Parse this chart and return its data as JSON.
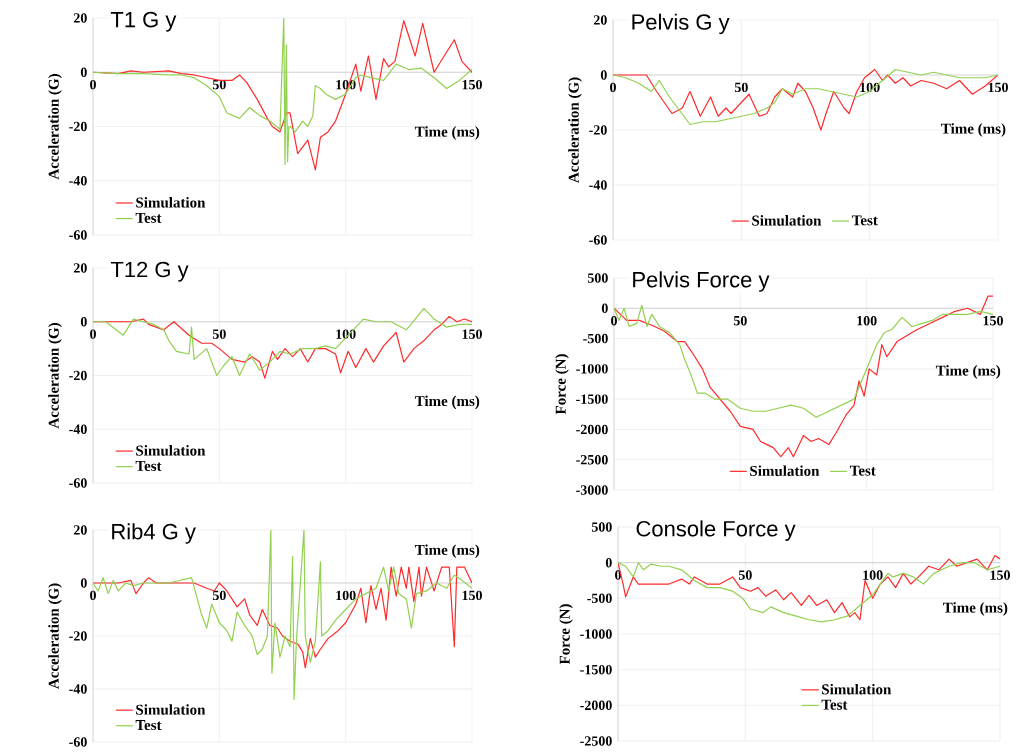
{
  "chart_data": [
    {
      "type": "line",
      "title": "T1 G y",
      "xlabel": "Time (ms)",
      "ylabel": "Acceleration (G)",
      "xlim": [
        0,
        150
      ],
      "xticks": [
        0,
        50,
        100,
        150
      ],
      "ylim": [
        -60,
        20
      ],
      "yticks": [
        -60,
        -40,
        -20,
        0,
        20
      ],
      "grid": true,
      "legend": "bottom left",
      "series": [
        {
          "name": "Simulation",
          "color": "#ff2a2a",
          "x": [
            0,
            10,
            15,
            20,
            30,
            35,
            40,
            45,
            50,
            55,
            58,
            61,
            65,
            69,
            71,
            74,
            76.6,
            78,
            81,
            85,
            88,
            90,
            93,
            96,
            100,
            104,
            106,
            109,
            112,
            115,
            117,
            119.5,
            123,
            127.5,
            130.5,
            135,
            143,
            146,
            150
          ],
          "values": [
            0,
            -0.5,
            0.5,
            0,
            0.5,
            -0.5,
            -1,
            -2,
            -3,
            -3,
            -1,
            -4,
            -10,
            -17,
            -20,
            -22,
            -15,
            -15,
            -30,
            -25,
            -36,
            -24,
            -22,
            -18,
            -8,
            3,
            -7,
            6,
            -10,
            5,
            2,
            4,
            19,
            6,
            18,
            0,
            12,
            4,
            0
          ]
        },
        {
          "name": "Test",
          "color": "#92d050",
          "x": [
            0,
            10,
            20,
            30,
            35,
            40,
            45,
            50,
            53,
            58,
            62,
            66,
            70,
            74,
            75.5,
            76,
            76.5,
            77,
            77.5,
            78,
            80,
            83,
            85,
            87,
            88,
            90,
            92,
            96,
            100,
            104,
            106,
            110,
            115,
            120,
            125,
            130,
            135,
            140,
            145,
            150
          ],
          "values": [
            0,
            -0.5,
            -0.5,
            -1,
            -1,
            -2,
            -5,
            -9,
            -15,
            -17,
            -13,
            -16,
            -18,
            -21,
            20,
            -34,
            10,
            -33,
            -20,
            -20,
            -22,
            -18,
            -20,
            -16,
            -5,
            -6,
            -8,
            -10,
            -8,
            -2,
            -1,
            -2,
            -3,
            3,
            1,
            1.5,
            -2,
            -6,
            -3,
            1
          ]
        }
      ]
    },
    {
      "type": "line",
      "title": "Pelvis G y",
      "xlabel": "Time (ms)",
      "ylabel": "Acceleration (G)",
      "xlim": [
        0,
        150
      ],
      "xticks": [
        0,
        50,
        100,
        150
      ],
      "ylim": [
        -60,
        20
      ],
      "yticks": [
        -60,
        -40,
        -20,
        0,
        20
      ],
      "grid": true,
      "legend": "bottom",
      "series": [
        {
          "name": "Simulation",
          "color": "#ff2a2a",
          "x": [
            0,
            10,
            13,
            17,
            20,
            23,
            27,
            30,
            34,
            38,
            41,
            44,
            46,
            50,
            53,
            57,
            60,
            63,
            66,
            70,
            72,
            75,
            78,
            81,
            83,
            86,
            90,
            92,
            95,
            98,
            102,
            105,
            107,
            110,
            113,
            116,
            120,
            125,
            130,
            135,
            140,
            145,
            150
          ],
          "values": [
            0,
            0,
            0,
            -6,
            -10,
            -14,
            -12,
            -6,
            -15,
            -8,
            -15,
            -12,
            -14,
            -10,
            -7,
            -15,
            -14,
            -8,
            -5,
            -8,
            -3,
            -6,
            -12,
            -20,
            -14,
            -6,
            -12,
            -14,
            -6,
            -1,
            2,
            -2,
            0,
            -3,
            -1,
            -4,
            -2,
            -3,
            -5,
            -2,
            -7,
            -4,
            0
          ]
        },
        {
          "name": "Test",
          "color": "#92d050",
          "x": [
            0,
            5,
            10,
            15,
            18,
            22,
            26,
            30,
            35,
            40,
            45,
            50,
            55,
            60,
            63,
            66,
            70,
            75,
            80,
            85,
            90,
            95,
            100,
            105,
            110,
            115,
            120,
            125,
            130,
            135,
            140,
            145,
            150
          ],
          "values": [
            0,
            -1,
            -3,
            -6,
            -2,
            -8,
            -13,
            -18,
            -17,
            -17,
            -16,
            -15,
            -14,
            -12,
            -10,
            -5,
            -7,
            -5,
            -5,
            -6,
            -7,
            -8,
            -6,
            -2,
            2,
            1,
            0,
            1,
            0,
            -1,
            -1,
            -1,
            0
          ]
        }
      ]
    },
    {
      "type": "line",
      "title": "T12 G y",
      "xlabel": "Time (ms)",
      "ylabel": "Acceleration (G)",
      "xlim": [
        0,
        150
      ],
      "xticks": [
        0,
        50,
        100,
        150
      ],
      "ylim": [
        -60,
        20
      ],
      "yticks": [
        -60,
        -40,
        -20,
        0,
        20
      ],
      "grid": true,
      "legend": "bottom left",
      "series": [
        {
          "name": "Simulation",
          "color": "#ff2a2a",
          "x": [
            0,
            15,
            20,
            22,
            28,
            32,
            38,
            43,
            47,
            50,
            55,
            60,
            63,
            66,
            68,
            71,
            73,
            76,
            79,
            82,
            85,
            88,
            92,
            96,
            98,
            101,
            104,
            108,
            111,
            115,
            120,
            123,
            127,
            131,
            135,
            138,
            141,
            144,
            147,
            150
          ],
          "values": [
            0,
            0,
            1,
            -1,
            -3,
            0,
            -5,
            -8,
            -8,
            -10,
            -14,
            -15,
            -13,
            -15,
            -21,
            -11,
            -14,
            -10,
            -13,
            -10,
            -15,
            -10,
            -10,
            -12,
            -19,
            -11,
            -17,
            -10,
            -15,
            -9,
            -4,
            -15,
            -10,
            -7,
            -3,
            -1,
            2,
            0,
            1,
            0
          ]
        },
        {
          "name": "Test",
          "color": "#92d050",
          "x": [
            0,
            5,
            12,
            16,
            20,
            24,
            28,
            30,
            33,
            38,
            39,
            40,
            45,
            49,
            52,
            55,
            58,
            62,
            66,
            70,
            74,
            78,
            83,
            88,
            92,
            96,
            100,
            104,
            107,
            112,
            118,
            124,
            131,
            135,
            140,
            145,
            150
          ],
          "values": [
            0,
            0,
            -5,
            1,
            0,
            -1,
            -3,
            -7,
            -11,
            -12,
            -2,
            -14,
            -10,
            -20,
            -16,
            -13,
            -20,
            -12,
            -18,
            -15,
            -11,
            -12,
            -10,
            -10,
            -9,
            -10,
            -6,
            -2,
            1,
            0,
            0,
            -3,
            5,
            1,
            -2,
            -1,
            -1
          ]
        }
      ]
    },
    {
      "type": "line",
      "title": "Pelvis Force y",
      "xlabel": "Time (ms)",
      "ylabel": "Force (N)",
      "xlim": [
        0,
        150
      ],
      "xticks": [
        0,
        50,
        100,
        150
      ],
      "ylim": [
        -3000,
        500
      ],
      "yticks": [
        -3000,
        -2500,
        -2000,
        -1500,
        -1000,
        -500,
        0,
        500
      ],
      "grid": true,
      "legend": "bottom",
      "series": [
        {
          "name": "Simulation",
          "color": "#ff2a2a",
          "x": [
            0,
            5,
            10,
            15,
            20,
            25,
            28,
            32,
            35,
            38,
            42,
            46,
            50,
            55,
            58,
            63,
            66,
            69,
            71,
            75,
            78,
            81,
            85,
            88,
            92,
            95,
            97,
            99,
            101,
            104,
            106,
            108,
            112,
            116,
            120,
            125,
            130,
            135,
            140,
            145,
            148,
            150
          ],
          "values": [
            0,
            -200,
            -200,
            -280,
            -380,
            -550,
            -550,
            -800,
            -1000,
            -1300,
            -1500,
            -1700,
            -1950,
            -2000,
            -2200,
            -2300,
            -2450,
            -2300,
            -2450,
            -2100,
            -2200,
            -2150,
            -2250,
            -2050,
            -1750,
            -1600,
            -1200,
            -1450,
            -1000,
            -1100,
            -600,
            -800,
            -550,
            -450,
            -350,
            -250,
            -150,
            -50,
            0,
            -100,
            200,
            200
          ]
        },
        {
          "name": "Test",
          "color": "#92d050",
          "x": [
            0,
            2,
            4,
            6,
            9,
            11,
            13,
            15,
            18,
            22,
            26,
            28,
            30,
            33,
            36,
            40,
            45,
            50,
            55,
            60,
            65,
            70,
            75,
            80,
            85,
            90,
            95,
            98,
            101,
            104,
            107,
            110,
            114,
            118,
            122,
            126,
            130,
            135,
            140,
            145,
            150
          ],
          "values": [
            0,
            -200,
            0,
            -300,
            -250,
            50,
            -300,
            -100,
            -300,
            -400,
            -600,
            -850,
            -1050,
            -1400,
            -1400,
            -1500,
            -1500,
            -1650,
            -1700,
            -1700,
            -1650,
            -1600,
            -1650,
            -1800,
            -1700,
            -1600,
            -1500,
            -1200,
            -900,
            -600,
            -400,
            -350,
            -150,
            -300,
            -250,
            -200,
            -100,
            -100,
            -100,
            -50,
            -100
          ]
        }
      ]
    },
    {
      "type": "line",
      "title": "Rib4 G y",
      "xlabel": "Time (ms)",
      "ylabel": "Acceleration (G)",
      "xlim": [
        0,
        150
      ],
      "xticks": [
        0,
        50,
        100,
        150
      ],
      "ylim": [
        -60,
        20
      ],
      "yticks": [
        -60,
        -40,
        -20,
        0,
        20
      ],
      "grid": true,
      "legend": "bottom left",
      "series": [
        {
          "name": "Simulation",
          "color": "#ff2a2a",
          "x": [
            0,
            10,
            15,
            17,
            20,
            22,
            25,
            30,
            35,
            40,
            45,
            48,
            50,
            53,
            55,
            57,
            60,
            62,
            65,
            67,
            70,
            73,
            75,
            78,
            81,
            83,
            84,
            86,
            88,
            90,
            93,
            97,
            100,
            104,
            106,
            108,
            110,
            112,
            114,
            116,
            118,
            120,
            122,
            124,
            125,
            127,
            129,
            130,
            132,
            135,
            138,
            141,
            143,
            144,
            147,
            150
          ],
          "values": [
            0,
            0,
            1,
            -4,
            0,
            2,
            0,
            0,
            0,
            0,
            -2,
            -3,
            0,
            -3,
            -6,
            -9,
            -6,
            -12,
            -16,
            -10,
            -16,
            -17,
            -20,
            -22,
            -23,
            -26,
            -32,
            -21,
            -28,
            -25,
            -21,
            -18,
            -15,
            -8,
            -2,
            -15,
            -1,
            -10,
            -2,
            -14,
            6,
            -5,
            6,
            -2,
            6,
            -7,
            6,
            -5,
            6,
            -3,
            6,
            6,
            -24,
            6,
            6,
            0
          ]
        },
        {
          "name": "Test",
          "color": "#92d050",
          "x": [
            0,
            2,
            4,
            6,
            8,
            10,
            13,
            16,
            20,
            30,
            39,
            41,
            43,
            45,
            47,
            50,
            53,
            55,
            57,
            60,
            63,
            65,
            67,
            69,
            70.4,
            70.8,
            72,
            74,
            76,
            78,
            79,
            79.6,
            80.5,
            83.5,
            84,
            86,
            88,
            90,
            90.5,
            93,
            96,
            100,
            104,
            108,
            112,
            115,
            117,
            119,
            121,
            124,
            126,
            128,
            132,
            136,
            140,
            143,
            146,
            150
          ],
          "values": [
            0,
            -3,
            2,
            -4,
            1,
            -3,
            0,
            -1,
            0,
            0,
            2,
            -5,
            -12,
            -17,
            -8,
            -15,
            -18,
            -22,
            -11,
            -16,
            -20,
            -27,
            -25,
            -20,
            20,
            -34,
            -15,
            -28,
            -20,
            -24,
            10,
            -44,
            -22,
            20,
            -20,
            -30,
            -22,
            8,
            -20,
            -18,
            -14,
            -10,
            -6,
            -4,
            -2,
            6,
            -3,
            6,
            -4,
            -6,
            -17,
            -4,
            -3,
            0,
            -2,
            3,
            1,
            -2
          ]
        }
      ]
    },
    {
      "type": "line",
      "title": "Console Force y",
      "xlabel": "Time (ms)",
      "ylabel": "Force (N)",
      "xlim": [
        0,
        150
      ],
      "xticks": [
        0,
        50,
        100,
        150
      ],
      "ylim": [
        -2500,
        500
      ],
      "yticks": [
        -2500,
        -2000,
        -1500,
        -1000,
        -500,
        0,
        500
      ],
      "grid": true,
      "legend": "bottom right",
      "series": [
        {
          "name": "Simulation",
          "color": "#ff2a2a",
          "x": [
            0,
            2,
            3,
            6,
            8,
            15,
            20,
            25,
            28,
            30,
            35,
            40,
            45,
            48,
            52,
            55,
            58,
            62,
            65,
            68,
            72,
            75,
            78,
            82,
            85,
            88,
            91,
            93,
            95,
            97,
            100,
            103,
            106,
            109,
            112,
            115,
            118,
            122,
            126,
            130,
            133,
            137,
            141,
            145,
            148,
            150
          ],
          "values": [
            0,
            -300,
            -480,
            -200,
            -300,
            -300,
            -300,
            -230,
            -300,
            -200,
            -300,
            -300,
            -200,
            -350,
            -400,
            -350,
            -470,
            -380,
            -520,
            -420,
            -600,
            -460,
            -600,
            -520,
            -700,
            -560,
            -760,
            -700,
            -800,
            -250,
            -500,
            -300,
            -200,
            -350,
            -150,
            -300,
            -200,
            -50,
            -100,
            50,
            -50,
            0,
            50,
            -100,
            100,
            50
          ]
        },
        {
          "name": "Test",
          "color": "#92d050",
          "x": [
            0,
            3,
            6,
            8,
            10,
            13,
            17,
            20,
            25,
            30,
            35,
            40,
            45,
            49,
            52,
            57,
            60,
            65,
            70,
            75,
            80,
            85,
            90,
            95,
            100,
            103,
            106,
            108,
            112,
            116,
            120,
            124,
            130,
            135,
            140,
            145,
            150
          ],
          "values": [
            0,
            -50,
            -200,
            0,
            -100,
            -20,
            -50,
            -50,
            -100,
            -250,
            -350,
            -350,
            -400,
            -500,
            -650,
            -700,
            -620,
            -700,
            -750,
            -800,
            -830,
            -800,
            -750,
            -600,
            -450,
            -300,
            -150,
            -200,
            -150,
            -200,
            -300,
            -150,
            -50,
            0,
            0,
            -100,
            -50
          ]
        }
      ]
    }
  ]
}
